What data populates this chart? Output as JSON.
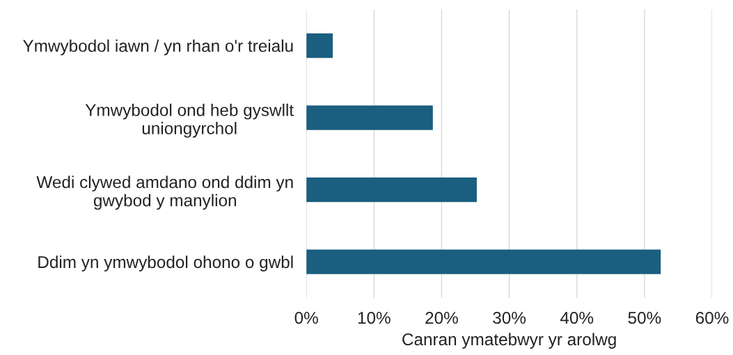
{
  "chart_data": {
    "type": "bar",
    "orientation": "horizontal",
    "categories": [
      "Ymwybodol iawn / yn rhan o'r treialu",
      "Ymwybodol ond heb gyswllt\nuniongyrchol",
      "Wedi clywed amdano ond ddim yn\ngwybod y manylion",
      "Ddim yn ymwybodol ohono o gwbl"
    ],
    "values": [
      3.9,
      18.7,
      25.2,
      52.4
    ],
    "color": "#1a5e80",
    "xlabel": "Canran ymatebwyr yr arolwg",
    "xlim": [
      0,
      60
    ],
    "xticks": [
      {
        "value": 0,
        "label": "0%"
      },
      {
        "value": 10,
        "label": "10%"
      },
      {
        "value": 20,
        "label": "20%"
      },
      {
        "value": 30,
        "label": "30%"
      },
      {
        "value": 40,
        "label": "40%"
      },
      {
        "value": 50,
        "label": "50%"
      },
      {
        "value": 60,
        "label": "60%"
      }
    ],
    "grid": "x"
  }
}
